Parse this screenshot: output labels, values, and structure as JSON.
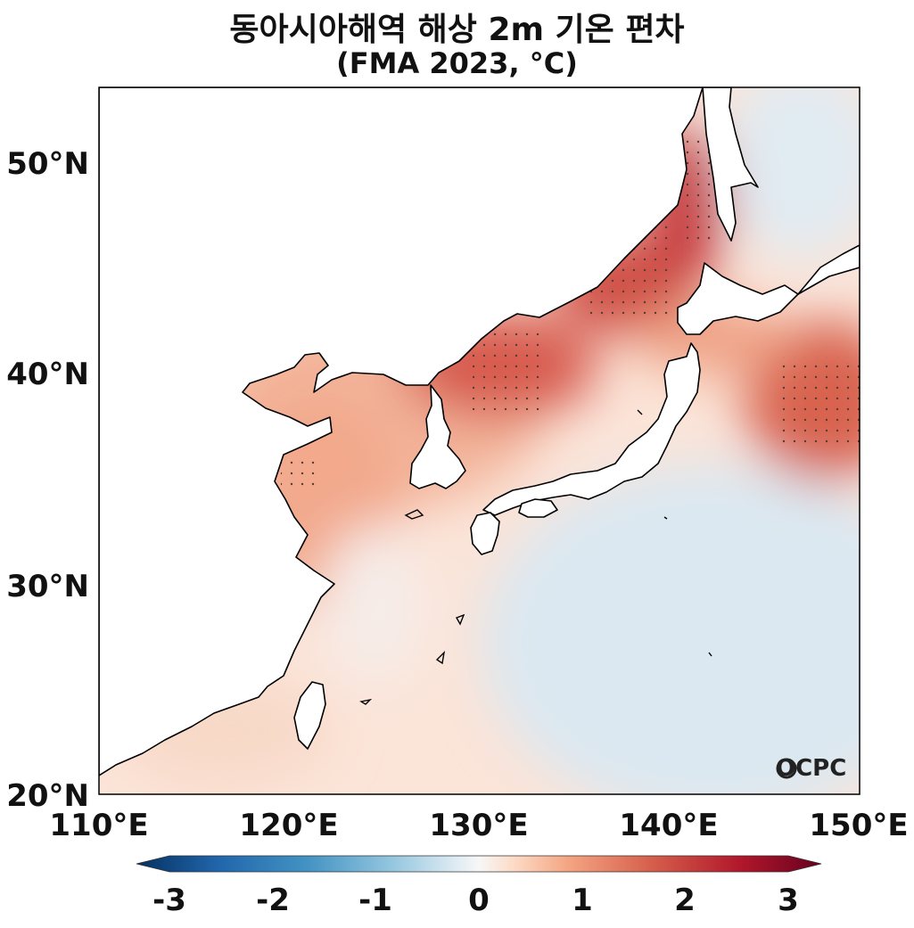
{
  "title": {
    "main": "동아시아해역 해상 2m 기온 편차",
    "sub": "(FMA 2023, °C)"
  },
  "axes": {
    "lat_ticks": [
      "50°N",
      "40°N",
      "30°N",
      "20°N"
    ],
    "lon_ticks": [
      "110°E",
      "120°E",
      "130°E",
      "140°E",
      "150°E"
    ],
    "lat_range": [
      20,
      53.5
    ],
    "lon_range": [
      110,
      150
    ]
  },
  "colorbar": {
    "ticks": [
      "-3",
      "-2",
      "-1",
      "0",
      "1",
      "2",
      "3"
    ],
    "range": [
      -3,
      3
    ],
    "colormap": "RdBu_r",
    "extend": "both"
  },
  "logo": {
    "text": "OCPC"
  },
  "colors": {
    "strong_positive": "#b2182b",
    "positive": "#ef8a62",
    "weak_positive": "#fddbc7",
    "neutral": "#f7f7f7",
    "weak_negative": "#d1e5f0",
    "negative": "#67a9cf",
    "strong_negative": "#2166ac",
    "land": "#ffffff",
    "coastline": "#000000"
  }
}
